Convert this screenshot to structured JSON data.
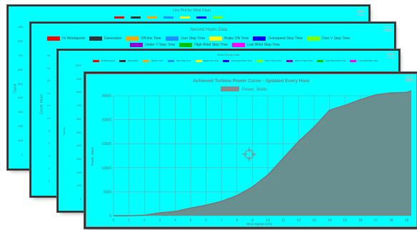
{
  "card1": {
    "title": "Line Plot for Wind Chart",
    "yticks": [
      "900",
      "800",
      "700",
      "600",
      "500",
      "400",
      "300",
      "200",
      "100",
      "0"
    ],
    "ylabel": "Count",
    "legend": [
      {
        "label": "",
        "color": "#ff0000"
      },
      {
        "label": "",
        "color": "#333333"
      },
      {
        "label": "",
        "color": "#ffa500"
      },
      {
        "label": "",
        "color": "#1e90ff"
      },
      {
        "label": "",
        "color": "#ffff00"
      },
      {
        "label": "",
        "color": "#0000ff"
      },
      {
        "label": "",
        "color": "#7fff00"
      }
    ]
  },
  "card2": {
    "title": "Second Hours Data",
    "ylabel": "Count, hours",
    "yticks": [
      "20",
      "18",
      "16",
      "14",
      "12",
      "10",
      "8",
      "6",
      "4",
      "2",
      "0"
    ],
    "legend_row1": [
      {
        "label": "Hr Windspeed",
        "color": "#ff0000"
      },
      {
        "label": "Generation",
        "color": "#333333"
      },
      {
        "label": "Off-line Time",
        "color": "#ffa500"
      },
      {
        "label": "User Stop Time",
        "color": "#1e90ff"
      },
      {
        "label": "Brake ON Time",
        "color": "#ffff00"
      },
      {
        "label": "Overspeed Stop Time",
        "color": "#0000ff"
      },
      {
        "label": "Over V Stop Time",
        "color": "#7fff00"
      }
    ],
    "legend_row2": [
      {
        "label": "Under V Stop Time",
        "color": "#9400d3"
      },
      {
        "label": "High Wind Stop Time",
        "color": "#00c000"
      },
      {
        "label": "Low Wind Stop Time",
        "color": "#ff00ff"
      }
    ]
  },
  "card3": {
    "title": "Wind Hourly Data",
    "yticks": [
      "1000",
      "900",
      "800",
      "700",
      "600",
      "500",
      "400",
      "300",
      "200",
      "100",
      "0"
    ],
    "ylabel": "Hours",
    "legend": [
      {
        "label": "Hr Windspeed",
        "color": "#ff0000"
      },
      {
        "label": "Generation",
        "color": "#333333"
      },
      {
        "label": "Off-line Time",
        "color": "#ffa500"
      },
      {
        "label": "User Stop Time",
        "color": "#1e90ff"
      },
      {
        "label": "Brake ON Time",
        "color": "#ffff00"
      },
      {
        "label": "Overspeed Stop Time",
        "color": "#0000ff"
      },
      {
        "label": "Over V Stop Time",
        "color": "#7fff00"
      },
      {
        "label": "Under V Stop Time",
        "color": "#9400d3"
      },
      {
        "label": "High Wind Stop Time",
        "color": "#00c000"
      },
      {
        "label": "Low Wind Stop Time",
        "color": "#ff00ff"
      }
    ]
  },
  "card4": {
    "title": "Achieved Turbine Power Curve - Updated Every Hour",
    "legend_label": "Power, Watts",
    "legend_color": "#8a8a8a",
    "xlabel": "Wind Speed (m/s)",
    "ylabel": "Power, Watts",
    "crosshair_icon": "crosshair-icon",
    "colors": {
      "background": "#00ffff",
      "area_fill": "#6e8a8a",
      "area_line": "#8a6a6a",
      "grid": "#7a9a9a"
    }
  },
  "chart_data": {
    "type": "area",
    "title": "Achieved Turbine Power Curve - Updated Every Hour",
    "xlabel": "Wind Speed (m/s)",
    "ylabel": "Power, Watts",
    "xlim": [
      0,
      19.3
    ],
    "ylim": [
      0,
      25000
    ],
    "xticks": [
      0,
      1,
      2,
      3,
      4,
      5,
      6,
      7,
      8,
      9,
      10,
      11,
      12,
      13,
      14,
      15,
      16,
      17,
      18,
      19
    ],
    "yticks": [
      0,
      5000,
      10000,
      15000,
      20000,
      25000
    ],
    "ytick_labels": [
      "0",
      "5000",
      "10000",
      "15000",
      "20000",
      "25000"
    ],
    "grid": true,
    "legend_placement": "top-center",
    "series": [
      {
        "name": "Power, Watts",
        "x": [
          0,
          1,
          2,
          3,
          4,
          5,
          6,
          7,
          8,
          9,
          10,
          11,
          12,
          13,
          14,
          15,
          16,
          17,
          18,
          19,
          19.3
        ],
        "y": [
          0,
          0,
          100,
          600,
          900,
          1600,
          2200,
          3000,
          4200,
          6000,
          8500,
          12000,
          15500,
          18500,
          22000,
          23000,
          24200,
          25200,
          25600,
          25700,
          26000
        ]
      }
    ]
  }
}
